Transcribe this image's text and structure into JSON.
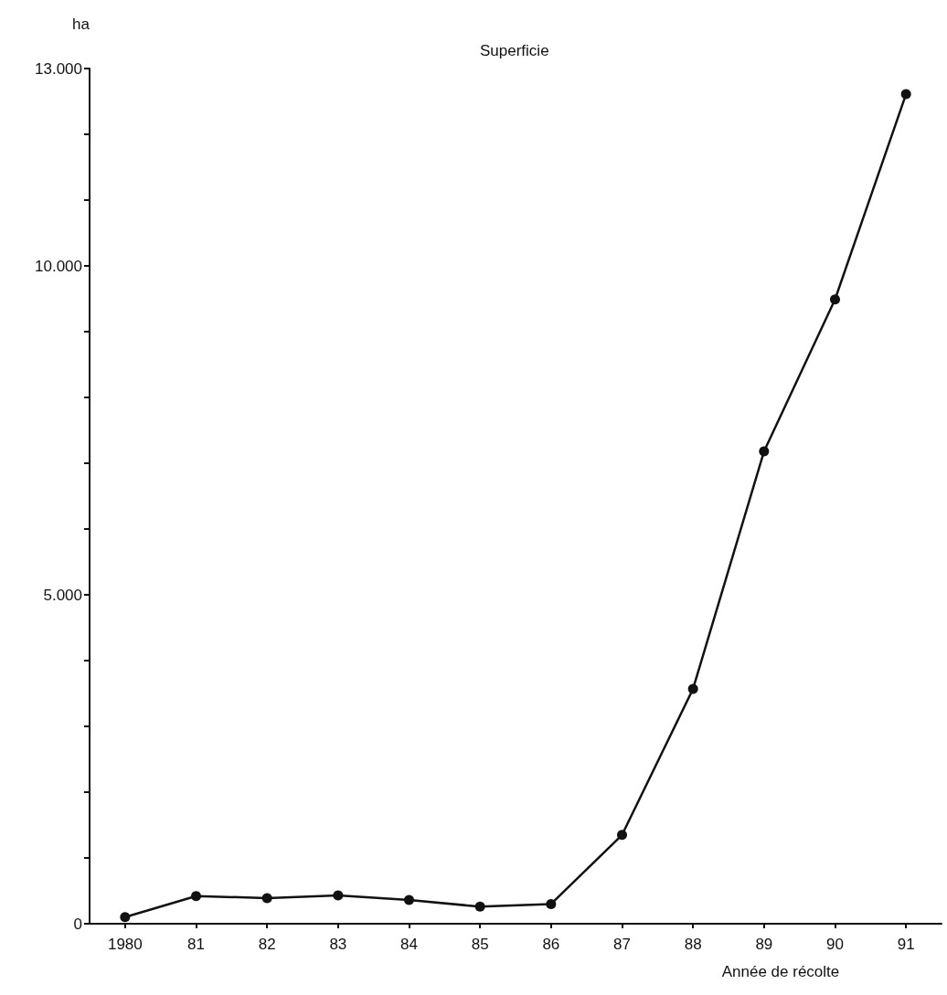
{
  "chart_data": {
    "type": "line",
    "title": "Superficie",
    "xlabel": "Année de récolte",
    "ylabel": "ha",
    "categories": [
      "1980",
      "81",
      "82",
      "83",
      "84",
      "85",
      "86",
      "87",
      "88",
      "89",
      "90",
      "91"
    ],
    "series": [
      {
        "color": "#111111",
        "values": [
          100,
          420,
          390,
          430,
          360,
          260,
          300,
          1350,
          3570,
          7180,
          9490,
          12610
        ]
      }
    ],
    "ylim": [
      0,
      13000
    ],
    "yticks": [
      {
        "value": 0,
        "label": "0"
      },
      {
        "value": 1000,
        "label": null
      },
      {
        "value": 2000,
        "label": null
      },
      {
        "value": 3000,
        "label": null
      },
      {
        "value": 4000,
        "label": null
      },
      {
        "value": 5000,
        "label": "5.000"
      },
      {
        "value": 6000,
        "label": null
      },
      {
        "value": 7000,
        "label": null
      },
      {
        "value": 8000,
        "label": null
      },
      {
        "value": 9000,
        "label": null
      },
      {
        "value": 10000,
        "label": "10.000"
      },
      {
        "value": 11000,
        "label": null
      },
      {
        "value": 12000,
        "label": null
      },
      {
        "value": 13000,
        "label": "13.000"
      }
    ],
    "grid": false,
    "marker": "circle",
    "line_style": "solid"
  }
}
